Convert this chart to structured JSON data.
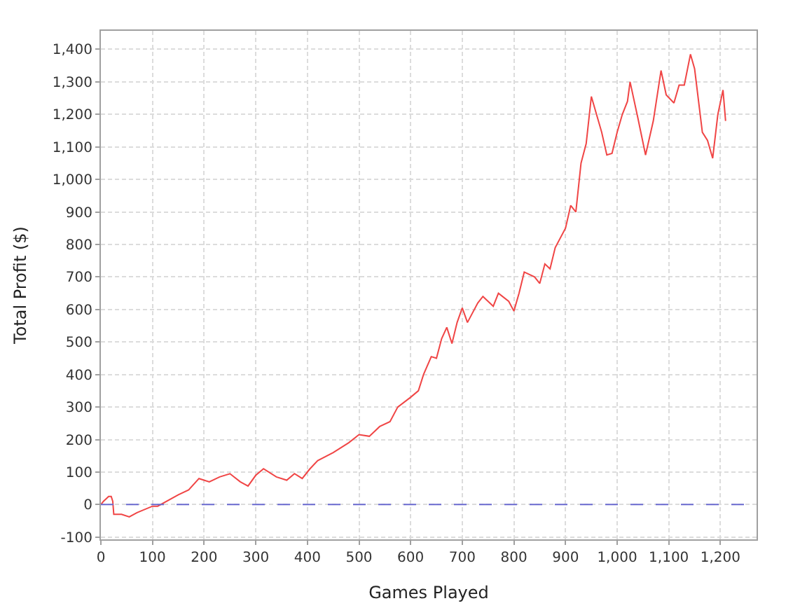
{
  "chart_data": {
    "type": "line",
    "xlabel": "Games Played",
    "ylabel": "Total Profit ($)",
    "x": [
      0,
      5,
      15,
      20,
      23,
      25,
      40,
      55,
      70,
      100,
      110,
      150,
      170,
      190,
      210,
      230,
      250,
      270,
      285,
      300,
      315,
      340,
      360,
      375,
      390,
      405,
      420,
      450,
      480,
      500,
      520,
      540,
      560,
      575,
      600,
      615,
      625,
      640,
      650,
      660,
      670,
      680,
      690,
      700,
      710,
      730,
      740,
      760,
      770,
      790,
      800,
      810,
      820,
      840,
      850,
      860,
      870,
      880,
      900,
      910,
      920,
      930,
      940,
      950,
      960,
      970,
      980,
      990,
      1000,
      1010,
      1020,
      1025,
      1040,
      1055,
      1070,
      1085,
      1095,
      1110,
      1120,
      1130,
      1142,
      1150,
      1165,
      1175,
      1185,
      1195,
      1205,
      1210
    ],
    "series": [
      {
        "color": "#f04545",
        "values": [
          0,
          10,
          25,
          25,
          10,
          -30,
          -30,
          -38,
          -25,
          -5,
          -5,
          30,
          45,
          80,
          70,
          85,
          95,
          70,
          57,
          90,
          110,
          85,
          75,
          95,
          80,
          110,
          135,
          160,
          190,
          215,
          210,
          240,
          255,
          300,
          330,
          350,
          400,
          455,
          450,
          510,
          545,
          495,
          560,
          605,
          560,
          620,
          640,
          610,
          650,
          625,
          595,
          650,
          715,
          700,
          680,
          740,
          725,
          790,
          850,
          920,
          900,
          1050,
          1110,
          1255,
          1200,
          1145,
          1075,
          1080,
          1145,
          1200,
          1240,
          1300,
          1190,
          1075,
          1180,
          1335,
          1260,
          1235,
          1290,
          1290,
          1385,
          1340,
          1145,
          1120,
          1065,
          1200,
          1275,
          1180
        ]
      }
    ],
    "xlim": [
      0,
      1270
    ],
    "ylim": [
      -107,
      1457
    ],
    "xticks": [
      0,
      100,
      200,
      300,
      400,
      500,
      600,
      700,
      800,
      900,
      {
        "value": 1000,
        "label": "1,000"
      },
      {
        "value": 1100,
        "label": "1,100"
      },
      {
        "value": 1200,
        "label": "1,200"
      }
    ],
    "yticks": [
      -100,
      0,
      100,
      200,
      300,
      400,
      500,
      600,
      700,
      800,
      900,
      {
        "value": 1000,
        "label": "1,000"
      },
      {
        "value": 1100,
        "label": "1,100"
      },
      {
        "value": 1200,
        "label": "1,200"
      },
      {
        "value": 1300,
        "label": "1,300"
      },
      {
        "value": 1400,
        "label": "1,400"
      }
    ],
    "ref_lines": [
      {
        "axis": "y",
        "value": 0,
        "color": "#6a6ad0",
        "line_style": "dashed"
      }
    ],
    "grid": true,
    "marker": "none",
    "line_style": "solid"
  }
}
